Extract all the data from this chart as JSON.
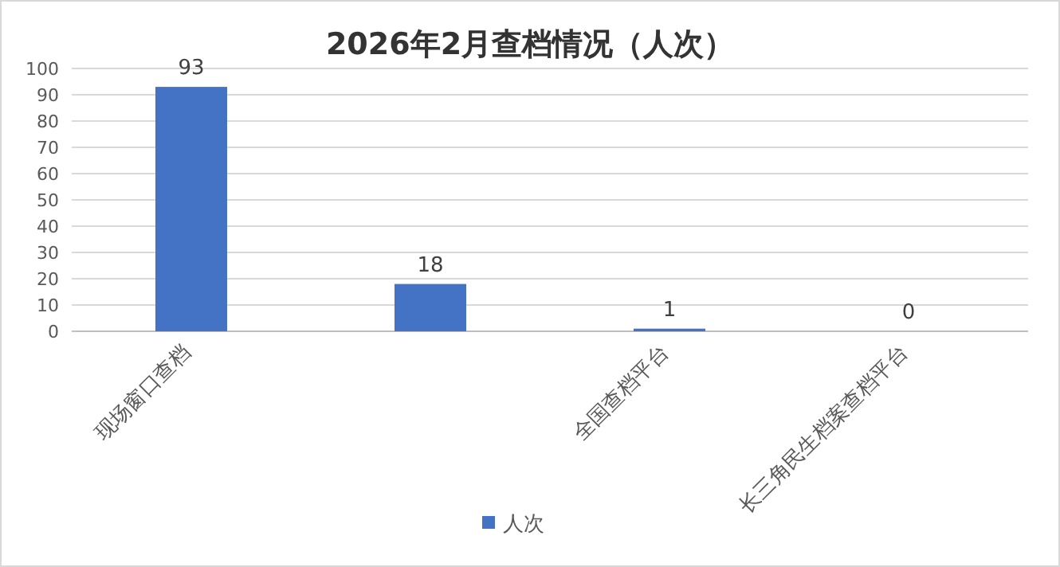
{
  "chart_data": {
    "type": "bar",
    "title": "2026年2月查档情况（人次）",
    "categories": [
      "现场窗口查档",
      null,
      "全国查档平台",
      "长三角民生档案查档平台"
    ],
    "series": [
      {
        "name": "人次",
        "color": "#4472c4",
        "values": [
          93,
          18,
          1,
          0
        ]
      }
    ],
    "ylim": [
      0,
      100
    ],
    "yticks": [
      0,
      10,
      20,
      30,
      40,
      50,
      60,
      70,
      80,
      90,
      100
    ],
    "grid": "y",
    "legend": "bottom",
    "data_labels": true
  }
}
